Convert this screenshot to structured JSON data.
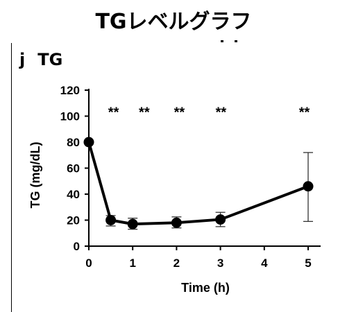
{
  "header": {
    "title": "TGレベルグラフ"
  },
  "panel": {
    "letter": "j",
    "title": "TG"
  },
  "chart_data": {
    "type": "line",
    "title": "TG",
    "xlabel": "Time (h)",
    "ylabel": "TG (mg/dL)",
    "xlim": [
      0,
      5
    ],
    "ylim": [
      0,
      120
    ],
    "x_ticks": [
      0,
      1,
      2,
      3,
      4,
      5
    ],
    "y_ticks": [
      0,
      20,
      40,
      60,
      80,
      100,
      120
    ],
    "series": [
      {
        "x": [
          0,
          0.5,
          1,
          2,
          3,
          5
        ],
        "values": [
          80,
          20,
          17,
          18,
          20.5,
          46
        ],
        "error_low": [
          80,
          15.5,
          13,
          14,
          15,
          19
        ],
        "error_high": [
          80,
          23.5,
          21.5,
          22.5,
          26,
          72
        ],
        "color": "#000000"
      }
    ],
    "annotations": [
      {
        "x": 0.5,
        "text": "**"
      },
      {
        "x": 1.2,
        "text": "**"
      },
      {
        "x": 2.0,
        "text": "**"
      },
      {
        "x": 2.95,
        "text": "**"
      },
      {
        "x": 4.85,
        "text": "**"
      }
    ],
    "annotation_y": 107,
    "grid": false,
    "legend": "none"
  }
}
